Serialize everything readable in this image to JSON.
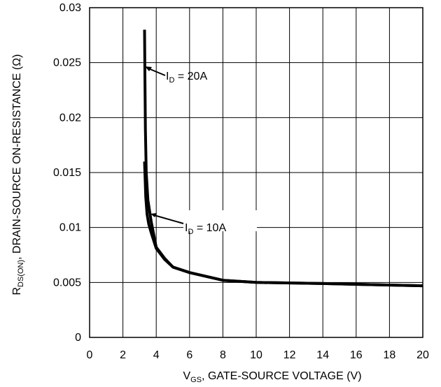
{
  "chart_data": {
    "type": "line",
    "title": "",
    "xlabel": {
      "main": "V",
      "sub": "GS",
      "rest": ", GATE-SOURCE VOLTAGE (V)"
    },
    "ylabel": {
      "main": "R",
      "sub": "DS(ON)",
      "rest": ", DRAIN-SOURCE ON-RESISTANCE (Ω)"
    },
    "xlim": [
      0,
      20
    ],
    "ylim": [
      0,
      0.03
    ],
    "xticks": [
      0,
      2,
      4,
      6,
      8,
      10,
      12,
      14,
      16,
      18,
      20
    ],
    "xtick_labels": [
      "0",
      "2",
      "4",
      "6",
      "8",
      "10",
      "12",
      "14",
      "16",
      "18",
      "20"
    ],
    "yticks": [
      0,
      0.005,
      0.01,
      0.015,
      0.02,
      0.025,
      0.03
    ],
    "ytick_labels": [
      "0",
      "0.005",
      "0.01",
      "0.015",
      "0.02",
      "0.025",
      "0.03"
    ],
    "grid": true,
    "colors": {
      "line": "#000000",
      "grid": "#000000"
    },
    "series": [
      {
        "name": "ID = 20A",
        "x": [
          3.3,
          3.32,
          3.35,
          3.4,
          3.5,
          3.7,
          4.0,
          4.5,
          5.0,
          6.0,
          8.0,
          10.0,
          14.0,
          20.0
        ],
        "y": [
          0.028,
          0.024,
          0.019,
          0.015,
          0.0125,
          0.0105,
          0.0082,
          0.0072,
          0.0064,
          0.0059,
          0.0052,
          0.005,
          0.0049,
          0.0047
        ]
      },
      {
        "name": "ID = 10A",
        "x": [
          3.3,
          3.33,
          3.37,
          3.45,
          3.55,
          3.7,
          4.0,
          4.5,
          5.0,
          6.0,
          8.0,
          10.0,
          14.0,
          20.0
        ],
        "y": [
          0.016,
          0.0145,
          0.0128,
          0.0112,
          0.0103,
          0.0095,
          0.0081,
          0.0071,
          0.0064,
          0.0059,
          0.0052,
          0.005,
          0.0049,
          0.0047
        ]
      }
    ],
    "annotations": [
      {
        "main": "I",
        "sub": "D",
        "rest": " = 20A",
        "series": 0
      },
      {
        "main": "I",
        "sub": "D",
        "rest": " = 10A",
        "series": 1
      }
    ]
  }
}
